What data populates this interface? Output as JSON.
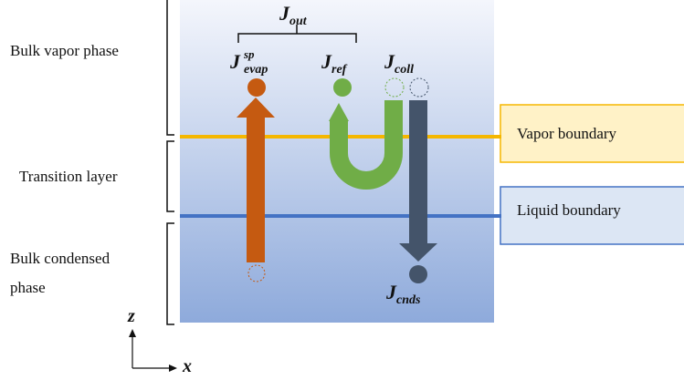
{
  "regions": {
    "bulk_vapor": "Bulk vapor phase",
    "transition": "Transition layer",
    "bulk_condensed_line1": "Bulk condensed",
    "bulk_condensed_line2": "phase"
  },
  "fluxes": {
    "out": {
      "base": "J",
      "sub": "out"
    },
    "evap": {
      "base": "J",
      "sub": "evap",
      "sup": "sp"
    },
    "ref": {
      "base": "J",
      "sub": "ref"
    },
    "coll": {
      "base": "J",
      "sub": "coll"
    },
    "cnds": {
      "base": "J",
      "sub": "cnds"
    }
  },
  "boundaries": {
    "vapor": {
      "label": "Vapor boundary",
      "color": "#F5B700",
      "fill": "#FFF2C7"
    },
    "liquid": {
      "label": "Liquid boundary",
      "color": "#4472C4",
      "fill": "#DCE6F4"
    }
  },
  "axes": {
    "z": "z",
    "x": "x"
  },
  "colors": {
    "evap_arrow": "#C55A11",
    "ref_arrow": "#70AD47",
    "cnds_arrow": "#44546A",
    "region_top": "#F4F6FC",
    "region_bottom": "#8EAADB"
  }
}
